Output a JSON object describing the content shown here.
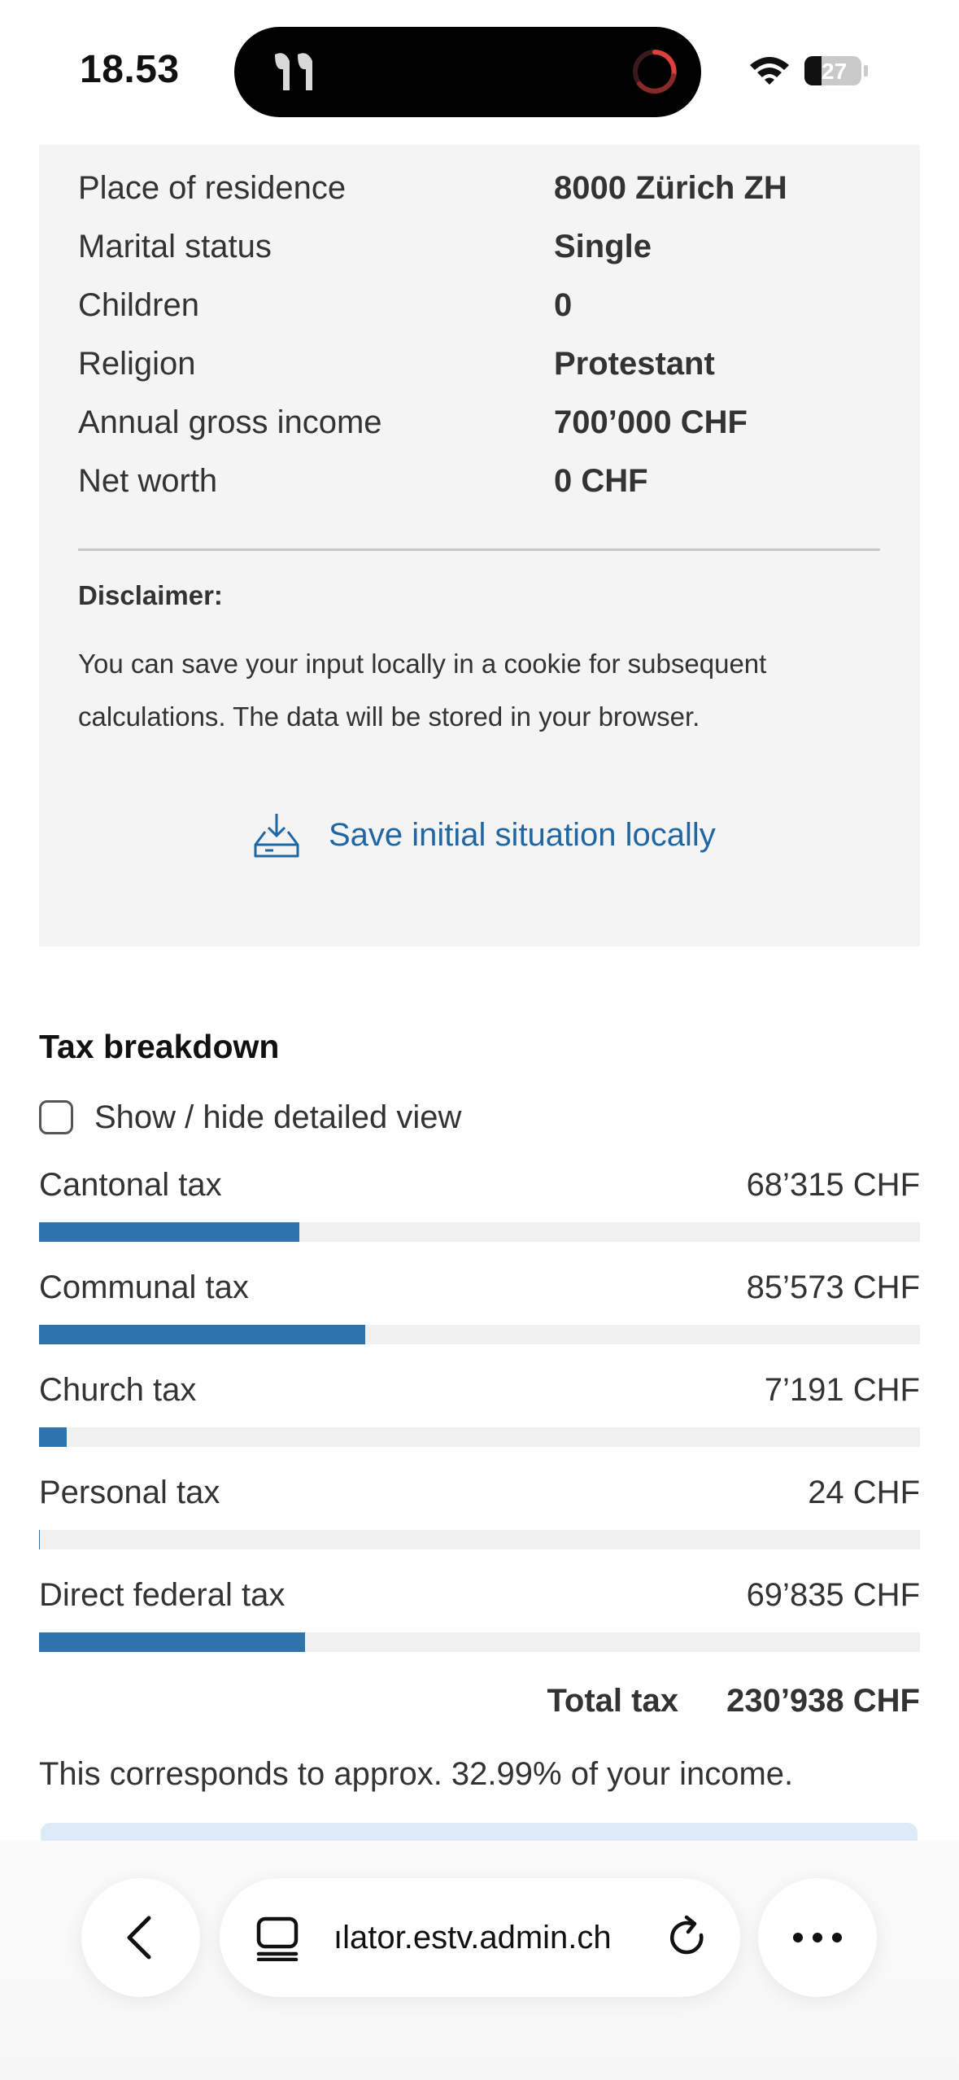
{
  "status_bar": {
    "time": "18.53",
    "battery": "27"
  },
  "summary": {
    "rows": [
      {
        "label": "Place of residence",
        "value": "8000 Zürich ZH"
      },
      {
        "label": "Marital status",
        "value": "Single"
      },
      {
        "label": "Children",
        "value": "0"
      },
      {
        "label": "Religion",
        "value": "Protestant"
      },
      {
        "label": "Annual gross income",
        "value": "700’000 CHF"
      },
      {
        "label": "Net worth",
        "value": "0 CHF"
      }
    ],
    "disclaimer_title": "Disclaimer:",
    "disclaimer_text": "You can save your input locally in a cookie for subsequent calculations. The data will be stored in your browser.",
    "save_label": "Save initial situation locally"
  },
  "breakdown": {
    "title": "Tax breakdown",
    "toggle_label": "Show / hide detailed view",
    "items": [
      {
        "name": "Cantonal tax",
        "amount": "68’315 CHF",
        "value": 68315
      },
      {
        "name": "Communal tax",
        "amount": "85’573 CHF",
        "value": 85573
      },
      {
        "name": "Church tax",
        "amount": "7’191 CHF",
        "value": 7191
      },
      {
        "name": "Personal tax",
        "amount": "24 CHF",
        "value": 24
      },
      {
        "name": "Direct federal tax",
        "amount": "69’835 CHF",
        "value": 69835
      }
    ],
    "total_label": "Total tax",
    "total_value": "230’938 CHF",
    "total_number": 230938,
    "income_note": "This corresponds to approx. 32.99% of your income."
  },
  "browser": {
    "url": "ılator.estv.admin.ch"
  },
  "colors": {
    "accent": "#2f73ad",
    "link": "#1f66a3",
    "card_bg": "#f4f4f4"
  },
  "icons": {
    "back": "chevron-left-icon",
    "tabs": "tabs-icon",
    "reload": "reload-icon",
    "more": "more-dots-icon",
    "save": "download-tray-icon"
  }
}
